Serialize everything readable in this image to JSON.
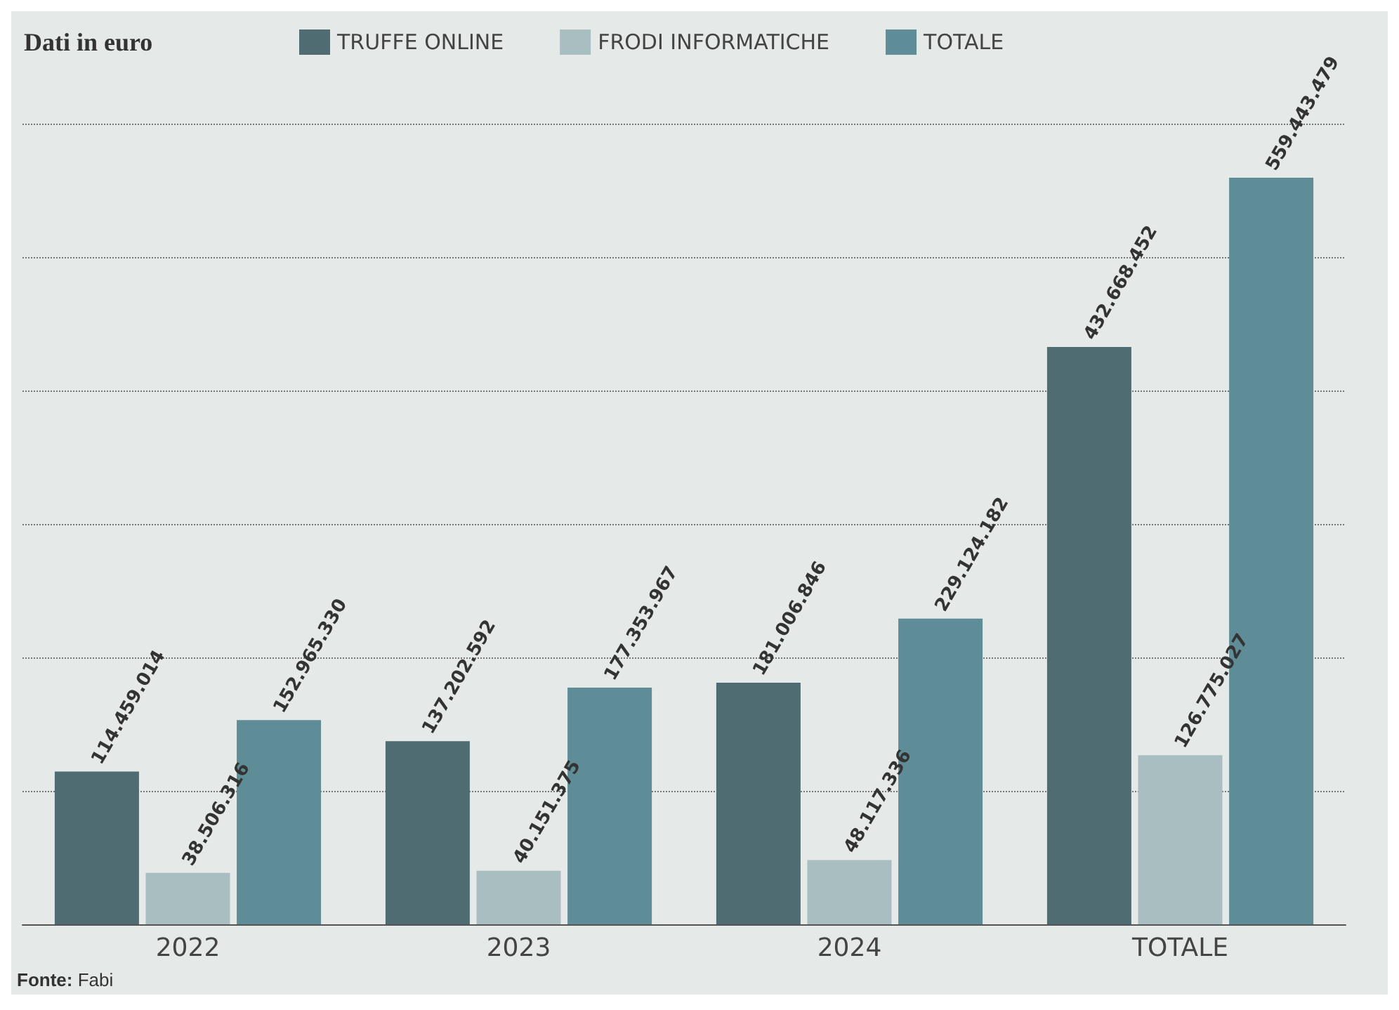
{
  "chart_data": {
    "type": "bar",
    "title": "Dati in euro",
    "categories": [
      "2022",
      "2023",
      "2024",
      "TOTALE"
    ],
    "series": [
      {
        "name": "TRUFFE ONLINE",
        "color": "#4e6c72",
        "values": [
          114459014,
          137202592,
          181006846,
          432668452
        ],
        "value_labels": [
          "114.459.014",
          "137.202.592",
          "181.006.846",
          "432.668.452"
        ]
      },
      {
        "name": "FRODI INFORMATICHE",
        "color": "#a9bec1",
        "values": [
          38506316,
          40151375,
          48117336,
          126775027
        ],
        "value_labels": [
          "38.506.316",
          "40.151.375",
          "48.117.336",
          "126.775.027"
        ]
      },
      {
        "name": "TOTALE",
        "color": "#5f8d97",
        "values": [
          152965330,
          177353967,
          229124182,
          559443479
        ],
        "value_labels": [
          "152.965.330",
          "177.353.967",
          "229.124.182",
          "559.443.479"
        ]
      }
    ],
    "tick_labels": "x",
    "grid": "y",
    "legend": "top",
    "annotations": [
      "**Fonte:** Fabi"
    ]
  }
}
